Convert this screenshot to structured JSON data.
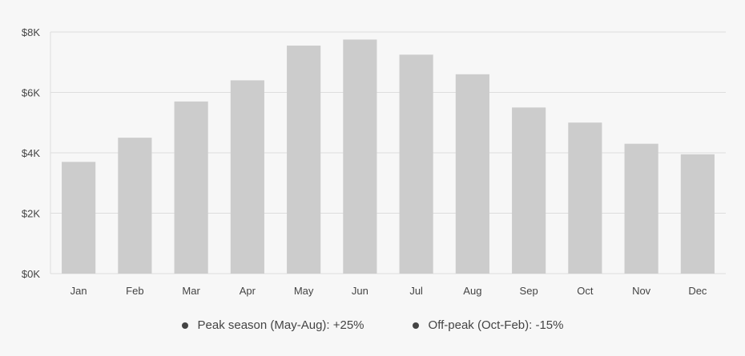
{
  "chart_data": {
    "type": "bar",
    "title": "",
    "xlabel": "",
    "ylabel": "",
    "categories": [
      "Jan",
      "Feb",
      "Mar",
      "Apr",
      "May",
      "Jun",
      "Jul",
      "Aug",
      "Sep",
      "Oct",
      "Nov",
      "Dec"
    ],
    "values": [
      3700,
      4500,
      5700,
      6400,
      7550,
      7750,
      7250,
      6600,
      5500,
      5000,
      4300,
      3950
    ],
    "ylim": [
      0,
      8000
    ],
    "yticks": [
      0,
      2000,
      4000,
      6000,
      8000
    ],
    "ytick_labels": [
      "$0K",
      "$2K",
      "$4K",
      "$6K",
      "$8K"
    ],
    "grid": true,
    "colors": {
      "bar": "#cccccc",
      "grid": "#dddddd",
      "text": "#444444"
    },
    "legend_placement": "bottom",
    "annotations": [
      {
        "label": "Peak season (May-Aug): +25%",
        "marker": "dot"
      },
      {
        "label": "Off-peak (Oct-Feb): -15%",
        "marker": "dot"
      }
    ]
  }
}
